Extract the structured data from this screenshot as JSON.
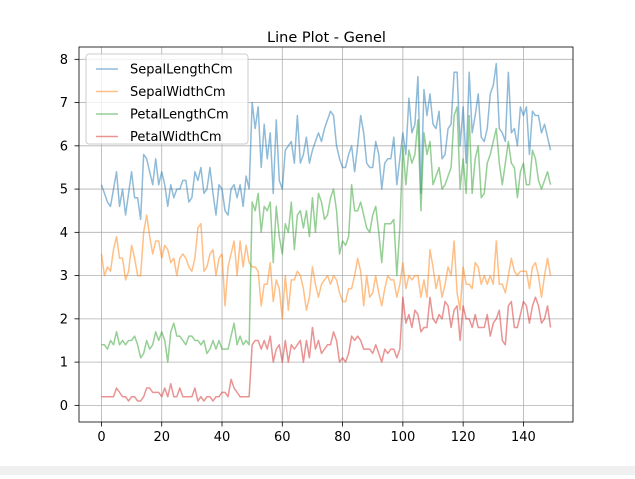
{
  "chart_data": {
    "type": "line",
    "title": "Line Plot - Genel",
    "xlabel": "",
    "ylabel": "",
    "xlim": [
      -7.45,
      156.45
    ],
    "ylim": [
      -0.385,
      8.285
    ],
    "xticks": [
      "0",
      "20",
      "40",
      "60",
      "80",
      "100",
      "120",
      "140"
    ],
    "yticks": [
      "0",
      "1",
      "2",
      "3",
      "4",
      "5",
      "6",
      "7",
      "8"
    ],
    "xtick_values": [
      0,
      20,
      40,
      60,
      80,
      100,
      120,
      140
    ],
    "ytick_values": [
      0,
      1,
      2,
      3,
      4,
      5,
      6,
      7,
      8
    ],
    "grid": true,
    "legend_position": "upper-left",
    "x": [
      0,
      1,
      2,
      3,
      4,
      5,
      6,
      7,
      8,
      9,
      10,
      11,
      12,
      13,
      14,
      15,
      16,
      17,
      18,
      19,
      20,
      21,
      22,
      23,
      24,
      25,
      26,
      27,
      28,
      29,
      30,
      31,
      32,
      33,
      34,
      35,
      36,
      37,
      38,
      39,
      40,
      41,
      42,
      43,
      44,
      45,
      46,
      47,
      48,
      49,
      50,
      51,
      52,
      53,
      54,
      55,
      56,
      57,
      58,
      59,
      60,
      61,
      62,
      63,
      64,
      65,
      66,
      67,
      68,
      69,
      70,
      71,
      72,
      73,
      74,
      75,
      76,
      77,
      78,
      79,
      80,
      81,
      82,
      83,
      84,
      85,
      86,
      87,
      88,
      89,
      90,
      91,
      92,
      93,
      94,
      95,
      96,
      97,
      98,
      99,
      100,
      101,
      102,
      103,
      104,
      105,
      106,
      107,
      108,
      109,
      110,
      111,
      112,
      113,
      114,
      115,
      116,
      117,
      118,
      119,
      120,
      121,
      122,
      123,
      124,
      125,
      126,
      127,
      128,
      129,
      130,
      131,
      132,
      133,
      134,
      135,
      136,
      137,
      138,
      139,
      140,
      141,
      142,
      143,
      144,
      145,
      146,
      147,
      148,
      149
    ],
    "series": [
      {
        "name": "SepalLengthCm",
        "color": "#1f77b4",
        "values": [
          5.1,
          4.9,
          4.7,
          4.6,
          5.0,
          5.4,
          4.6,
          5.0,
          4.4,
          4.9,
          5.4,
          4.8,
          4.8,
          4.3,
          5.8,
          5.7,
          5.4,
          5.1,
          5.7,
          5.1,
          5.4,
          5.1,
          4.6,
          5.1,
          4.8,
          5.0,
          5.0,
          5.2,
          5.2,
          4.7,
          4.8,
          5.4,
          5.2,
          5.5,
          4.9,
          5.0,
          5.5,
          4.9,
          4.4,
          5.1,
          5.0,
          4.5,
          4.4,
          5.0,
          5.1,
          4.8,
          5.1,
          4.6,
          5.3,
          5.0,
          7.0,
          6.4,
          6.9,
          5.5,
          6.5,
          5.7,
          6.3,
          4.9,
          6.6,
          5.2,
          5.0,
          5.9,
          6.0,
          6.1,
          5.6,
          6.7,
          5.6,
          5.8,
          6.2,
          5.6,
          5.9,
          6.1,
          6.3,
          6.1,
          6.4,
          6.6,
          6.8,
          6.7,
          6.0,
          5.7,
          5.5,
          5.5,
          5.8,
          6.0,
          5.4,
          6.0,
          6.7,
          6.3,
          5.6,
          5.5,
          5.5,
          6.1,
          5.8,
          5.0,
          5.6,
          5.7,
          5.7,
          6.2,
          5.1,
          5.7,
          6.3,
          5.8,
          7.1,
          6.3,
          6.5,
          7.6,
          4.9,
          7.3,
          6.7,
          7.2,
          6.5,
          6.4,
          6.8,
          5.7,
          5.8,
          6.4,
          6.5,
          7.7,
          7.7,
          6.0,
          6.9,
          5.6,
          7.7,
          6.3,
          6.7,
          7.2,
          6.2,
          6.1,
          6.4,
          7.2,
          7.4,
          7.9,
          6.4,
          6.3,
          6.1,
          7.7,
          6.3,
          6.4,
          6.0,
          6.9,
          6.7,
          6.9,
          5.8,
          6.8,
          6.7,
          6.7,
          6.3,
          6.5,
          6.2,
          5.9
        ]
      },
      {
        "name": "SepalWidthCm",
        "color": "#ff7f0e",
        "values": [
          3.5,
          3.0,
          3.2,
          3.1,
          3.6,
          3.9,
          3.4,
          3.4,
          2.9,
          3.1,
          3.7,
          3.4,
          3.0,
          3.0,
          4.0,
          4.4,
          3.9,
          3.5,
          3.8,
          3.8,
          3.4,
          3.7,
          3.6,
          3.3,
          3.4,
          3.0,
          3.4,
          3.5,
          3.4,
          3.2,
          3.1,
          3.4,
          4.1,
          4.2,
          3.1,
          3.2,
          3.5,
          3.6,
          3.0,
          3.4,
          3.5,
          2.3,
          3.2,
          3.5,
          3.8,
          3.0,
          3.8,
          3.2,
          3.7,
          3.3,
          3.2,
          3.2,
          3.1,
          2.3,
          2.8,
          2.8,
          3.3,
          2.4,
          2.9,
          2.7,
          2.0,
          3.0,
          2.2,
          2.9,
          2.9,
          3.1,
          3.0,
          2.7,
          2.2,
          2.5,
          3.2,
          2.8,
          2.5,
          2.8,
          2.9,
          3.0,
          2.8,
          3.0,
          2.9,
          2.6,
          2.4,
          2.4,
          2.7,
          2.7,
          3.0,
          3.4,
          3.1,
          2.3,
          3.0,
          2.5,
          2.6,
          3.0,
          2.6,
          2.3,
          2.7,
          3.0,
          2.9,
          2.9,
          2.5,
          2.8,
          3.3,
          2.7,
          3.0,
          2.9,
          3.0,
          3.0,
          2.5,
          2.9,
          2.5,
          3.6,
          3.2,
          2.7,
          3.0,
          2.5,
          2.8,
          3.2,
          3.0,
          3.8,
          2.6,
          2.2,
          3.2,
          2.8,
          2.8,
          2.7,
          3.3,
          3.2,
          2.8,
          3.0,
          2.8,
          3.0,
          2.8,
          3.8,
          2.8,
          2.8,
          2.6,
          3.0,
          3.4,
          3.1,
          3.0,
          3.1,
          3.1,
          3.1,
          2.7,
          3.2,
          3.3,
          3.0,
          2.5,
          3.0,
          3.4,
          3.0
        ]
      },
      {
        "name": "PetalLengthCm",
        "color": "#2ca02c",
        "values": [
          1.4,
          1.4,
          1.3,
          1.5,
          1.4,
          1.7,
          1.4,
          1.5,
          1.4,
          1.5,
          1.5,
          1.6,
          1.4,
          1.1,
          1.2,
          1.5,
          1.3,
          1.4,
          1.7,
          1.5,
          1.7,
          1.5,
          1.0,
          1.7,
          1.9,
          1.6,
          1.6,
          1.5,
          1.4,
          1.6,
          1.6,
          1.5,
          1.5,
          1.4,
          1.5,
          1.2,
          1.3,
          1.5,
          1.3,
          1.5,
          1.3,
          1.3,
          1.3,
          1.6,
          1.9,
          1.4,
          1.6,
          1.4,
          1.5,
          1.4,
          4.7,
          4.5,
          4.9,
          4.0,
          4.6,
          4.5,
          4.7,
          3.3,
          4.6,
          3.9,
          3.5,
          4.2,
          4.0,
          4.7,
          3.6,
          4.4,
          4.5,
          4.1,
          4.5,
          3.9,
          4.8,
          4.0,
          4.9,
          4.7,
          4.3,
          4.4,
          4.8,
          5.0,
          4.5,
          3.5,
          3.8,
          3.7,
          3.9,
          5.1,
          4.5,
          4.5,
          4.7,
          4.4,
          4.1,
          4.0,
          4.4,
          4.6,
          4.0,
          3.3,
          4.2,
          4.2,
          4.2,
          4.3,
          3.0,
          4.1,
          6.0,
          5.1,
          5.9,
          5.6,
          5.8,
          6.6,
          4.5,
          6.3,
          5.8,
          6.1,
          5.1,
          5.3,
          5.5,
          5.0,
          5.1,
          5.3,
          5.5,
          6.7,
          6.9,
          5.0,
          5.7,
          4.9,
          6.7,
          4.9,
          5.7,
          6.0,
          4.8,
          4.9,
          5.6,
          5.8,
          6.1,
          6.4,
          5.6,
          5.1,
          5.6,
          6.1,
          5.6,
          5.5,
          4.8,
          5.4,
          5.6,
          5.1,
          5.1,
          5.9,
          5.7,
          5.2,
          5.0,
          5.2,
          5.4,
          5.1
        ]
      },
      {
        "name": "PetalWidthCm",
        "color": "#d62728",
        "values": [
          0.2,
          0.2,
          0.2,
          0.2,
          0.2,
          0.4,
          0.3,
          0.2,
          0.2,
          0.1,
          0.2,
          0.2,
          0.1,
          0.1,
          0.2,
          0.4,
          0.4,
          0.3,
          0.3,
          0.3,
          0.2,
          0.4,
          0.2,
          0.5,
          0.2,
          0.2,
          0.4,
          0.2,
          0.2,
          0.2,
          0.2,
          0.4,
          0.1,
          0.2,
          0.1,
          0.2,
          0.2,
          0.1,
          0.2,
          0.2,
          0.3,
          0.3,
          0.2,
          0.6,
          0.4,
          0.3,
          0.2,
          0.2,
          0.2,
          0.2,
          1.4,
          1.5,
          1.5,
          1.3,
          1.5,
          1.3,
          1.6,
          1.0,
          1.3,
          1.4,
          1.0,
          1.5,
          1.0,
          1.4,
          1.3,
          1.4,
          1.5,
          1.0,
          1.5,
          1.1,
          1.8,
          1.3,
          1.5,
          1.2,
          1.3,
          1.4,
          1.4,
          1.7,
          1.5,
          1.0,
          1.1,
          1.0,
          1.2,
          1.6,
          1.5,
          1.6,
          1.5,
          1.3,
          1.3,
          1.3,
          1.2,
          1.4,
          1.2,
          1.0,
          1.3,
          1.2,
          1.3,
          1.3,
          1.1,
          1.3,
          2.5,
          1.9,
          2.1,
          1.8,
          2.2,
          2.1,
          1.7,
          1.8,
          1.8,
          2.5,
          2.0,
          1.9,
          2.1,
          2.0,
          2.4,
          2.3,
          1.8,
          2.2,
          2.3,
          1.5,
          2.3,
          2.0,
          2.0,
          1.8,
          2.1,
          1.8,
          1.8,
          1.8,
          2.1,
          1.6,
          1.9,
          2.0,
          2.2,
          1.5,
          1.4,
          2.3,
          2.4,
          1.8,
          1.8,
          2.1,
          2.4,
          2.3,
          1.9,
          2.3,
          2.5,
          2.3,
          1.9,
          2.0,
          2.3,
          1.8
        ]
      }
    ]
  }
}
